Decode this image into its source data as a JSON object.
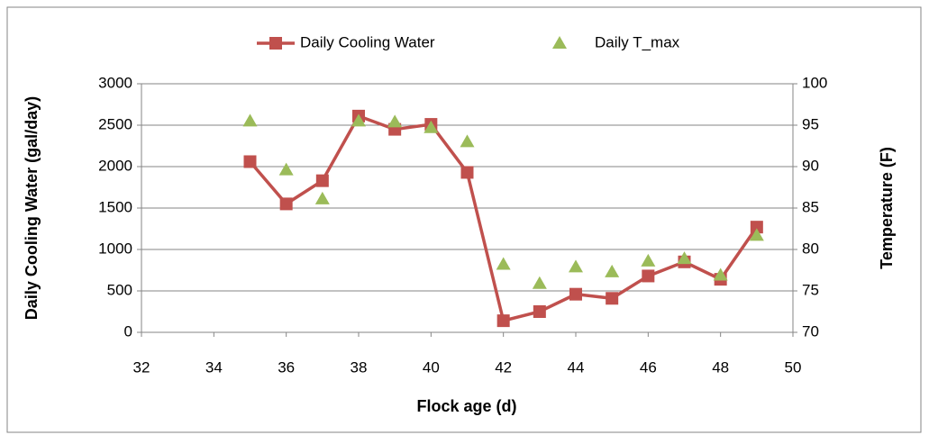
{
  "chart_data": {
    "type": "line",
    "x": [
      35,
      36,
      37,
      38,
      39,
      40,
      41,
      42,
      43,
      44,
      45,
      46,
      47,
      48,
      49
    ],
    "series": [
      {
        "name": "Daily Cooling Water",
        "color": "#c0504d",
        "marker": "square",
        "line": true,
        "axis": "y",
        "values": [
          2060,
          1550,
          1830,
          2610,
          2450,
          2510,
          1930,
          140,
          250,
          460,
          410,
          680,
          850,
          640,
          1270
        ]
      },
      {
        "name": "Daily T_max",
        "color": "#9bbb59",
        "marker": "triangle",
        "line": false,
        "axis": "y2",
        "values": [
          95.5,
          89.6,
          86.1,
          95.5,
          95.4,
          94.7,
          93.0,
          78.2,
          75.9,
          77.9,
          77.3,
          78.6,
          78.9,
          76.9,
          81.7
        ]
      }
    ],
    "xlabel": "Flock age (d)",
    "ylabel": "Daily Cooling Water (gal/day)",
    "y2label": "Temperature (F)",
    "xlim": [
      32,
      50
    ],
    "xticks": [
      32,
      34,
      36,
      38,
      40,
      42,
      44,
      46,
      48,
      50
    ],
    "ylim": [
      0,
      3000
    ],
    "yticks": [
      0,
      500,
      1000,
      1500,
      2000,
      2500,
      3000
    ],
    "y2lim": [
      70,
      100
    ],
    "y2ticks": [
      70,
      75,
      80,
      85,
      90,
      95,
      100
    ],
    "grid": true,
    "legend": "top"
  }
}
